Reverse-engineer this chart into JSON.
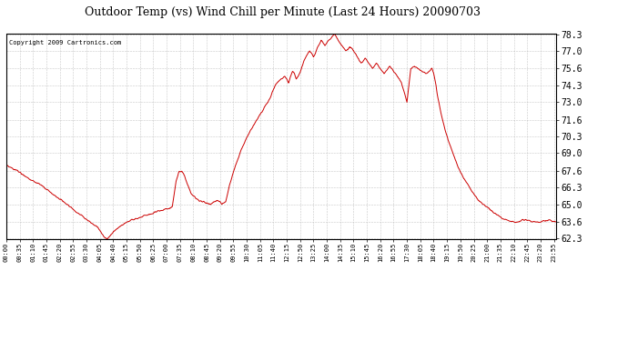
{
  "title": "Outdoor Temp (vs) Wind Chill per Minute (Last 24 Hours) 20090703",
  "copyright_text": "Copyright 2009 Cartronics.com",
  "line_color": "#cc0000",
  "background_color": "#ffffff",
  "grid_color": "#bbbbbb",
  "y_min": 62.3,
  "y_max": 78.3,
  "y_ticks": [
    62.3,
    63.6,
    65.0,
    66.3,
    67.6,
    69.0,
    70.3,
    71.6,
    73.0,
    74.3,
    75.6,
    77.0,
    78.3
  ],
  "x_tick_interval": 35,
  "total_minutes": 1440,
  "keypoints": [
    [
      0,
      68.0
    ],
    [
      30,
      67.6
    ],
    [
      60,
      67.0
    ],
    [
      90,
      66.5
    ],
    [
      120,
      65.8
    ],
    [
      150,
      65.2
    ],
    [
      180,
      64.5
    ],
    [
      210,
      63.8
    ],
    [
      240,
      63.2
    ],
    [
      255,
      62.5
    ],
    [
      265,
      62.3
    ],
    [
      280,
      62.8
    ],
    [
      300,
      63.3
    ],
    [
      315,
      63.6
    ],
    [
      330,
      63.8
    ],
    [
      345,
      63.9
    ],
    [
      360,
      64.1
    ],
    [
      375,
      64.2
    ],
    [
      390,
      64.4
    ],
    [
      405,
      64.5
    ],
    [
      420,
      64.6
    ],
    [
      435,
      64.8
    ],
    [
      445,
      66.8
    ],
    [
      452,
      67.5
    ],
    [
      460,
      67.6
    ],
    [
      468,
      67.2
    ],
    [
      475,
      66.5
    ],
    [
      485,
      65.8
    ],
    [
      495,
      65.5
    ],
    [
      505,
      65.3
    ],
    [
      515,
      65.2
    ],
    [
      525,
      65.1
    ],
    [
      535,
      65.0
    ],
    [
      545,
      65.2
    ],
    [
      555,
      65.3
    ],
    [
      560,
      65.2
    ],
    [
      565,
      65.0
    ],
    [
      575,
      65.2
    ],
    [
      585,
      66.5
    ],
    [
      600,
      68.0
    ],
    [
      615,
      69.2
    ],
    [
      630,
      70.2
    ],
    [
      645,
      71.0
    ],
    [
      660,
      71.8
    ],
    [
      675,
      72.5
    ],
    [
      690,
      73.2
    ],
    [
      700,
      74.0
    ],
    [
      710,
      74.5
    ],
    [
      720,
      74.8
    ],
    [
      730,
      75.0
    ],
    [
      735,
      74.8
    ],
    [
      740,
      74.5
    ],
    [
      745,
      75.0
    ],
    [
      750,
      75.4
    ],
    [
      755,
      75.2
    ],
    [
      760,
      74.8
    ],
    [
      765,
      75.0
    ],
    [
      770,
      75.3
    ],
    [
      775,
      75.8
    ],
    [
      780,
      76.2
    ],
    [
      785,
      76.5
    ],
    [
      790,
      76.8
    ],
    [
      795,
      77.0
    ],
    [
      800,
      76.8
    ],
    [
      805,
      76.5
    ],
    [
      810,
      76.8
    ],
    [
      815,
      77.2
    ],
    [
      820,
      77.5
    ],
    [
      825,
      77.8
    ],
    [
      830,
      77.6
    ],
    [
      835,
      77.4
    ],
    [
      840,
      77.6
    ],
    [
      845,
      77.8
    ],
    [
      850,
      78.0
    ],
    [
      855,
      78.2
    ],
    [
      860,
      78.3
    ],
    [
      865,
      78.1
    ],
    [
      870,
      77.8
    ],
    [
      875,
      77.6
    ],
    [
      880,
      77.4
    ],
    [
      885,
      77.2
    ],
    [
      890,
      77.0
    ],
    [
      895,
      77.1
    ],
    [
      900,
      77.3
    ],
    [
      905,
      77.2
    ],
    [
      910,
      77.0
    ],
    [
      915,
      76.8
    ],
    [
      920,
      76.5
    ],
    [
      925,
      76.2
    ],
    [
      930,
      76.0
    ],
    [
      935,
      76.2
    ],
    [
      940,
      76.4
    ],
    [
      945,
      76.2
    ],
    [
      950,
      76.0
    ],
    [
      955,
      75.8
    ],
    [
      960,
      75.6
    ],
    [
      965,
      75.8
    ],
    [
      970,
      76.0
    ],
    [
      975,
      75.8
    ],
    [
      980,
      75.6
    ],
    [
      985,
      75.4
    ],
    [
      990,
      75.2
    ],
    [
      995,
      75.4
    ],
    [
      1000,
      75.6
    ],
    [
      1005,
      75.8
    ],
    [
      1010,
      75.6
    ],
    [
      1015,
      75.4
    ],
    [
      1020,
      75.2
    ],
    [
      1025,
      75.0
    ],
    [
      1030,
      74.8
    ],
    [
      1035,
      74.5
    ],
    [
      1040,
      74.0
    ],
    [
      1045,
      73.5
    ],
    [
      1050,
      73.0
    ],
    [
      1060,
      75.6
    ],
    [
      1070,
      75.8
    ],
    [
      1080,
      75.6
    ],
    [
      1090,
      75.4
    ],
    [
      1100,
      75.2
    ],
    [
      1110,
      75.4
    ],
    [
      1115,
      75.6
    ],
    [
      1120,
      75.2
    ],
    [
      1125,
      74.5
    ],
    [
      1130,
      73.5
    ],
    [
      1140,
      72.0
    ],
    [
      1150,
      70.8
    ],
    [
      1160,
      69.8
    ],
    [
      1170,
      69.0
    ],
    [
      1180,
      68.2
    ],
    [
      1190,
      67.5
    ],
    [
      1200,
      67.0
    ],
    [
      1210,
      66.5
    ],
    [
      1220,
      66.0
    ],
    [
      1230,
      65.6
    ],
    [
      1240,
      65.2
    ],
    [
      1250,
      65.0
    ],
    [
      1260,
      64.8
    ],
    [
      1270,
      64.5
    ],
    [
      1280,
      64.3
    ],
    [
      1290,
      64.1
    ],
    [
      1300,
      63.9
    ],
    [
      1310,
      63.8
    ],
    [
      1320,
      63.7
    ],
    [
      1330,
      63.6
    ],
    [
      1340,
      63.6
    ],
    [
      1350,
      63.7
    ],
    [
      1360,
      63.8
    ],
    [
      1370,
      63.7
    ],
    [
      1380,
      63.6
    ],
    [
      1390,
      63.6
    ],
    [
      1400,
      63.6
    ],
    [
      1410,
      63.7
    ],
    [
      1420,
      63.8
    ],
    [
      1430,
      63.7
    ],
    [
      1440,
      63.6
    ]
  ]
}
